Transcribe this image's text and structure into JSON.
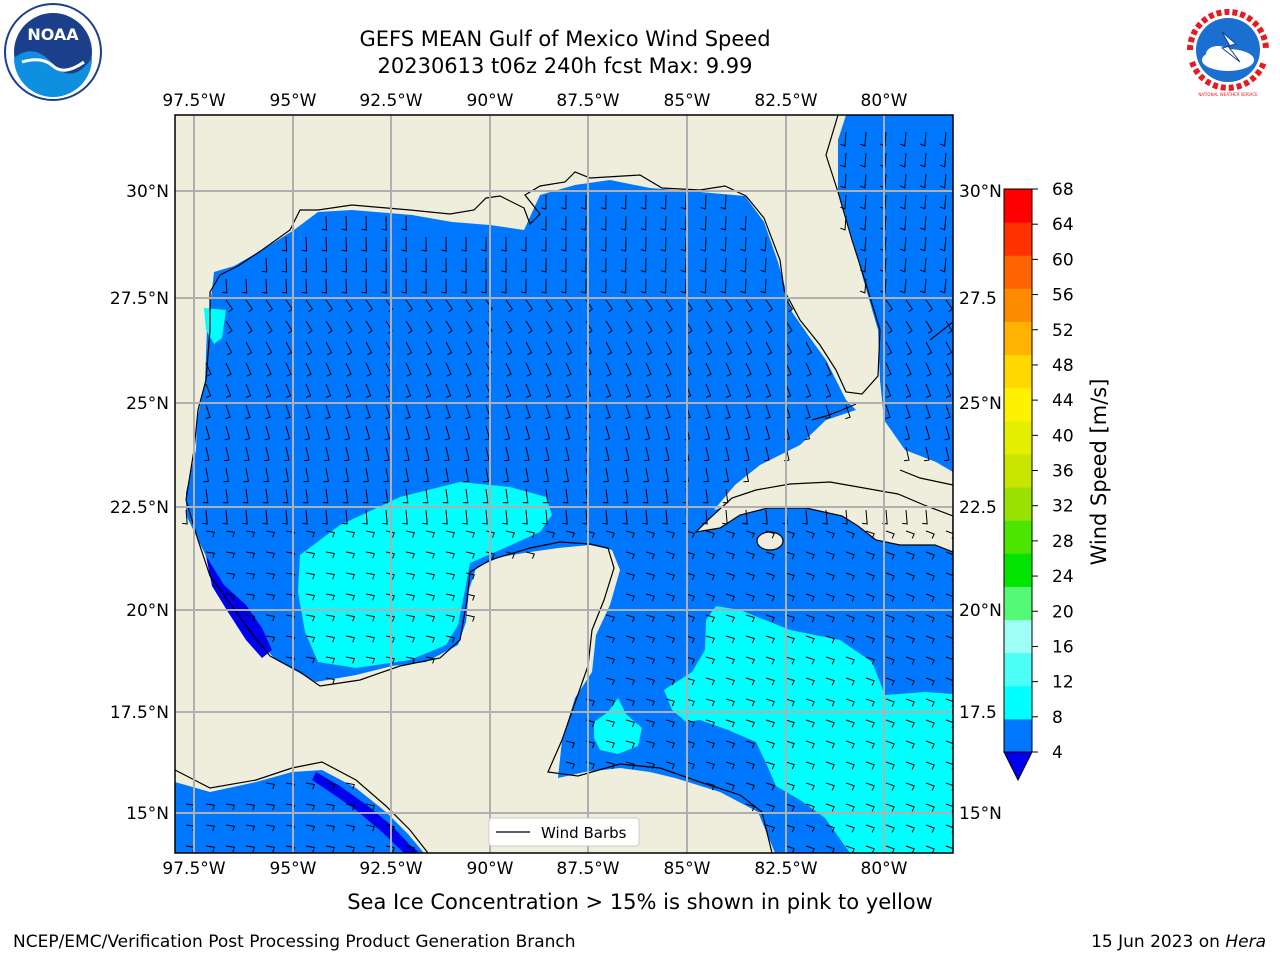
{
  "title": {
    "line1": "GEFS MEAN Gulf of Mexico Wind Speed",
    "line2": "20230613 t06z 240h fcst   Max: 9.99"
  },
  "map": {
    "lon_labels": [
      "97.5°W",
      "95°W",
      "92.5°W",
      "90°W",
      "87.5°W",
      "85°W",
      "82.5°W",
      "80°W"
    ],
    "lat_labels_left": [
      "30°N",
      "27.5°N",
      "25°N",
      "22.5°N",
      "20°N",
      "17.5°N",
      "15°N"
    ],
    "lat_labels_right": [
      "30°N",
      "27.5",
      "25°N",
      "22.5",
      "20°N",
      "17.5",
      "15°N"
    ],
    "legend_label": "Wind Barbs",
    "colors": {
      "land": "#efeedc",
      "wind_4_8": "#0077ff",
      "wind_8_12": "#00ffff",
      "wind_below_4": "#0000ee",
      "grid": "#b0b0b0"
    }
  },
  "colorbar": {
    "title": "Wind Speed [m/s]",
    "ticks": [
      "4",
      "8",
      "12",
      "16",
      "20",
      "24",
      "28",
      "32",
      "36",
      "40",
      "44",
      "48",
      "52",
      "56",
      "60",
      "64",
      "68"
    ],
    "colors": [
      "#0077ff",
      "#00ffff",
      "#4cfff6",
      "#9dfff5",
      "#54fa76",
      "#00e400",
      "#4ce500",
      "#99e100",
      "#c8e500",
      "#e4ee00",
      "#fff200",
      "#ffd800",
      "#ffb300",
      "#ff8c00",
      "#ff6400",
      "#ff3200",
      "#ff0000"
    ],
    "under_color": "#0000ee"
  },
  "note": "Sea Ice Concentration > 15% is shown in pink to yellow",
  "footer": {
    "left": "NCEP/EMC/Verification Post Processing Product Generation Branch",
    "date": "15 Jun 2023 on ",
    "machine": "Hera"
  },
  "logos": {
    "noaa_text": "NOAA",
    "nws_text": "NATIONAL WEATHER SERVICE"
  }
}
